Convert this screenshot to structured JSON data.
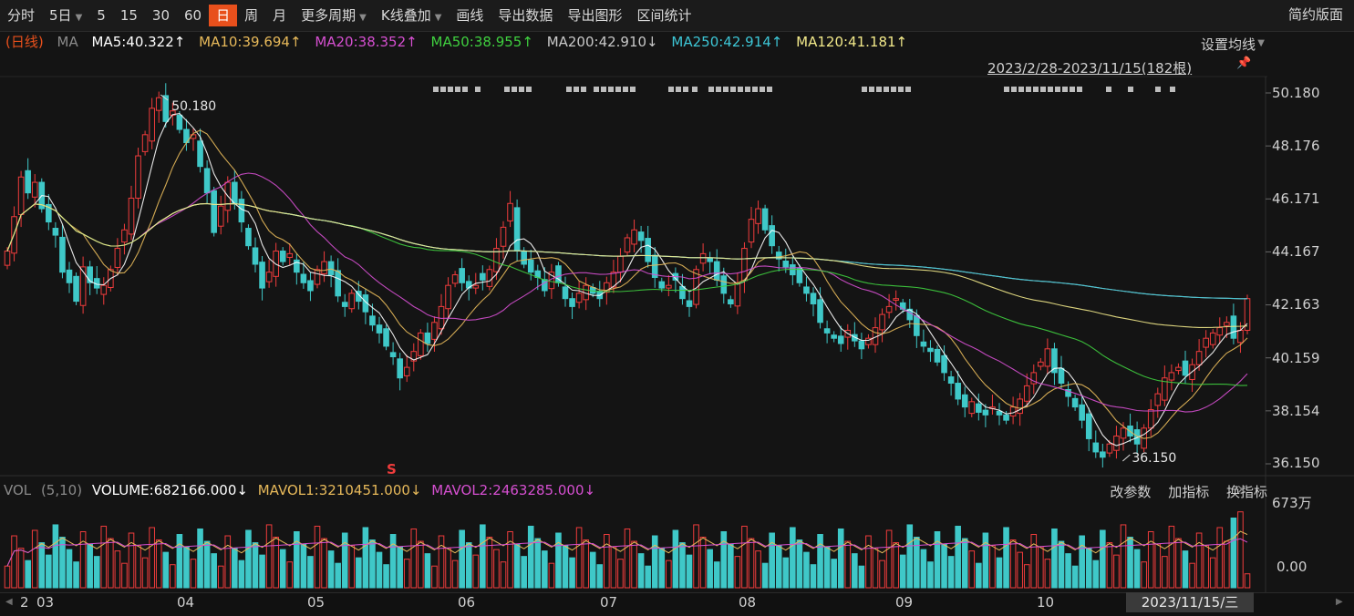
{
  "toolbar": {
    "items": [
      "分时",
      "5日",
      "5",
      "15",
      "30",
      "60",
      "日",
      "周",
      "月",
      "更多周期",
      "K线叠加",
      "画线",
      "导出数据",
      "导出图形",
      "区间统计"
    ],
    "active_index": 6,
    "right_label": "简约版面"
  },
  "ma_legend": {
    "prefix": "(日线)",
    "label": "MA",
    "items": [
      {
        "text": "MA5:40.322↑",
        "color": "#ffffff"
      },
      {
        "text": "MA10:39.694↑",
        "color": "#e7b95a"
      },
      {
        "text": "MA20:38.352↑",
        "color": "#d54fd0"
      },
      {
        "text": "MA50:38.955↑",
        "color": "#3fcf3f"
      },
      {
        "text": "MA200:42.910↓",
        "color": "#c8c8c8"
      },
      {
        "text": "MA250:42.914↑",
        "color": "#3dc6d6"
      },
      {
        "text": "MA120:41.181↑",
        "color": "#f2e98a"
      }
    ],
    "prefix_color": "#e8501c",
    "label_color": "#8a8a8a"
  },
  "settings": {
    "label": "设置均线",
    "range": "2023/2/28-2023/11/15(182根)"
  },
  "price_axis": {
    "labels": [
      "50.180",
      "48.176",
      "46.171",
      "44.167",
      "42.163",
      "40.159",
      "38.154",
      "36.150"
    ],
    "max": 50.18,
    "min": 36.15
  },
  "annotations": {
    "high": "50.180",
    "low": "36.150",
    "dividend_marker": "S"
  },
  "volume": {
    "label": "VOL",
    "params": "(5,10)",
    "volume_text": "VOLUME:682166.000↓",
    "mavol1_text": "MAVOL1:3210451.000↓",
    "mavol2_text": "MAVOL2:2463285.000↓",
    "axis_top": "673万",
    "axis_bottom": "0.00",
    "tools": [
      "改参数",
      "加指标",
      "换指标"
    ]
  },
  "x_axis": {
    "months": [
      {
        "label": "2"
      },
      {
        "label": "03"
      },
      {
        "label": "04"
      },
      {
        "label": "05"
      },
      {
        "label": "06"
      },
      {
        "label": "07"
      },
      {
        "label": "08"
      },
      {
        "label": "09"
      },
      {
        "label": "10"
      }
    ],
    "current_date": "2023/11/15/三"
  },
  "colors": {
    "up": "#f03c3c",
    "down": "#3fc8c8",
    "accent": "#e8501c"
  },
  "chart_data": {
    "type": "candlestick",
    "closes": [
      44.2,
      45.5,
      47.0,
      46.4,
      46.8,
      45.8,
      45.3,
      44.8,
      43.4,
      43.0,
      42.3,
      43.6,
      43.0,
      42.8,
      42.9,
      43.5,
      44.3,
      45.0,
      46.2,
      47.8,
      48.6,
      49.6,
      50.0,
      49.1,
      49.5,
      48.8,
      48.3,
      48.6,
      47.4,
      46.4,
      44.9,
      45.9,
      46.8,
      46.0,
      45.3,
      44.4,
      43.7,
      42.8,
      43.4,
      44.2,
      43.8,
      44.1,
      43.4,
      43.0,
      42.7,
      43.5,
      43.8,
      43.3,
      42.5,
      42.1,
      42.6,
      42.3,
      41.9,
      41.4,
      41.1,
      40.6,
      40.2,
      39.4,
      39.8,
      40.4,
      41.1,
      40.7,
      41.5,
      42.1,
      42.9,
      43.3,
      43.0,
      42.8,
      42.9,
      43.1,
      43.5,
      44.3,
      45.1,
      46.0,
      44.2,
      43.7,
      43.4,
      43.2,
      42.7,
      43.4,
      43.0,
      42.4,
      42.1,
      42.6,
      42.9,
      42.6,
      42.4,
      43.0,
      43.4,
      44.0,
      44.7,
      45.0,
      44.6,
      43.8,
      43.2,
      42.8,
      42.9,
      43.1,
      42.4,
      42.1,
      43.5,
      44.1,
      43.8,
      43.1,
      42.6,
      42.2,
      43.0,
      44.3,
      45.4,
      45.8,
      45.0,
      44.4,
      43.9,
      43.6,
      43.3,
      43.0,
      42.6,
      42.2,
      41.5,
      41.1,
      40.9,
      40.7,
      41.2,
      40.8,
      40.5,
      40.9,
      41.3,
      41.8,
      42.1,
      42.4,
      42.0,
      41.6,
      41.0,
      40.6,
      40.4,
      40.0,
      39.6,
      39.2,
      38.6,
      38.3,
      38.5,
      38.1,
      38.0,
      38.3,
      38.0,
      37.8,
      38.3,
      38.6,
      39.1,
      39.6,
      40.0,
      40.5,
      39.6,
      39.2,
      38.7,
      38.3,
      37.8,
      37.1,
      36.6,
      36.4,
      36.9,
      37.2,
      37.5,
      37.2,
      36.9,
      37.5,
      38.2,
      38.8,
      39.4,
      39.6,
      39.8,
      39.5,
      39.9,
      40.4,
      40.9,
      41.1,
      41.3,
      41.5,
      40.9,
      41.2,
      42.4
    ],
    "volume_max_label": "673万",
    "price_range": [
      36.15,
      50.18
    ]
  }
}
